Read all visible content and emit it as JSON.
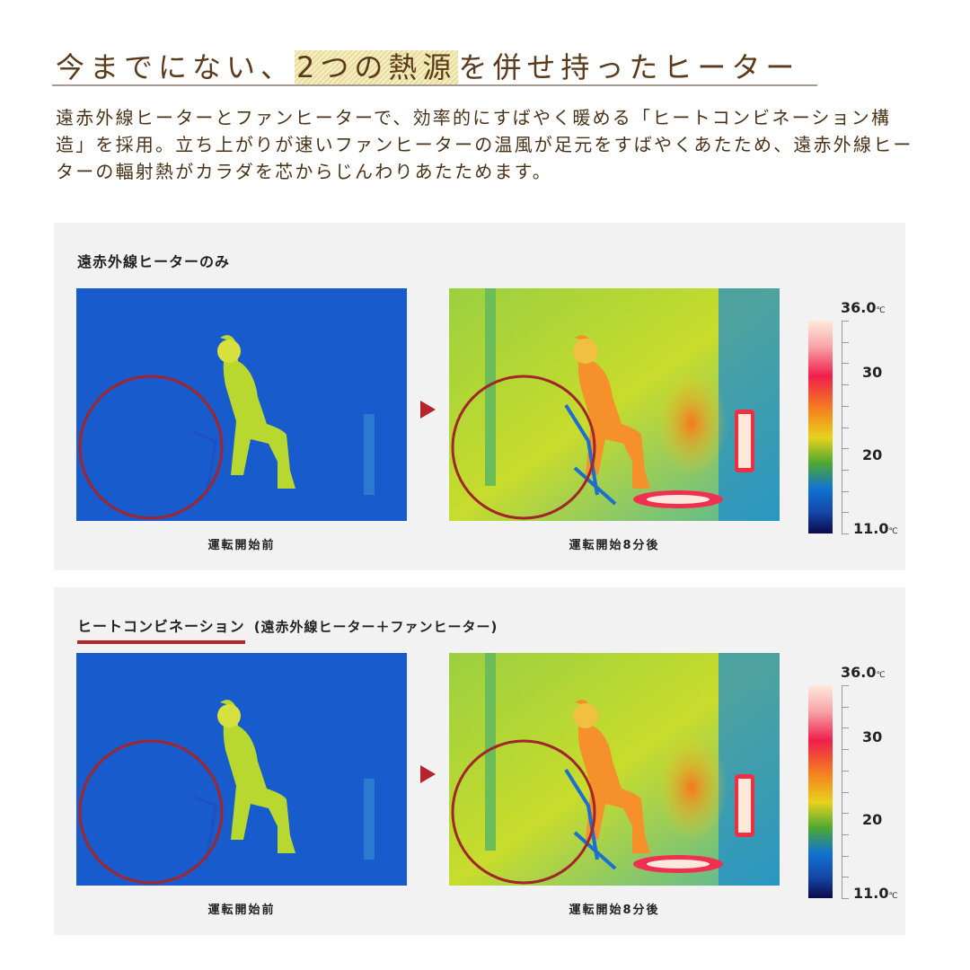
{
  "header": {
    "title_pre": "今までにない、",
    "title_highlight": "2つの熱源",
    "title_post": "を併せ持ったヒーター",
    "description": "遠赤外線ヒーターとファンヒーターで、効率的にすばやく暖める「ヒートコンビネーション構造」を採用。立ち上がりが速いファンヒーターの温風が足元をすばやくあたため、遠赤外線ヒーターの輻射熱がカラダを芯からじんわりあたためます。"
  },
  "panels": [
    {
      "title": "遠赤外線ヒーターのみ",
      "subtitle": "",
      "before_caption": "運転開始前",
      "after_caption": "運転開始8分後"
    },
    {
      "title": "ヒートコンビネーション",
      "subtitle": "(遠赤外線ヒーター＋ファンヒーター)",
      "before_caption": "運転開始前",
      "after_caption": "運転開始8分後"
    }
  ],
  "scale": {
    "max": "36.0",
    "max_unit": "℃",
    "mid_high": "30",
    "mid_low": "20",
    "min": "11.0",
    "min_unit": "℃"
  },
  "colors": {
    "accent": "#b5242a",
    "title": "#5a3a1a",
    "panel_bg": "#f2f2f2"
  }
}
